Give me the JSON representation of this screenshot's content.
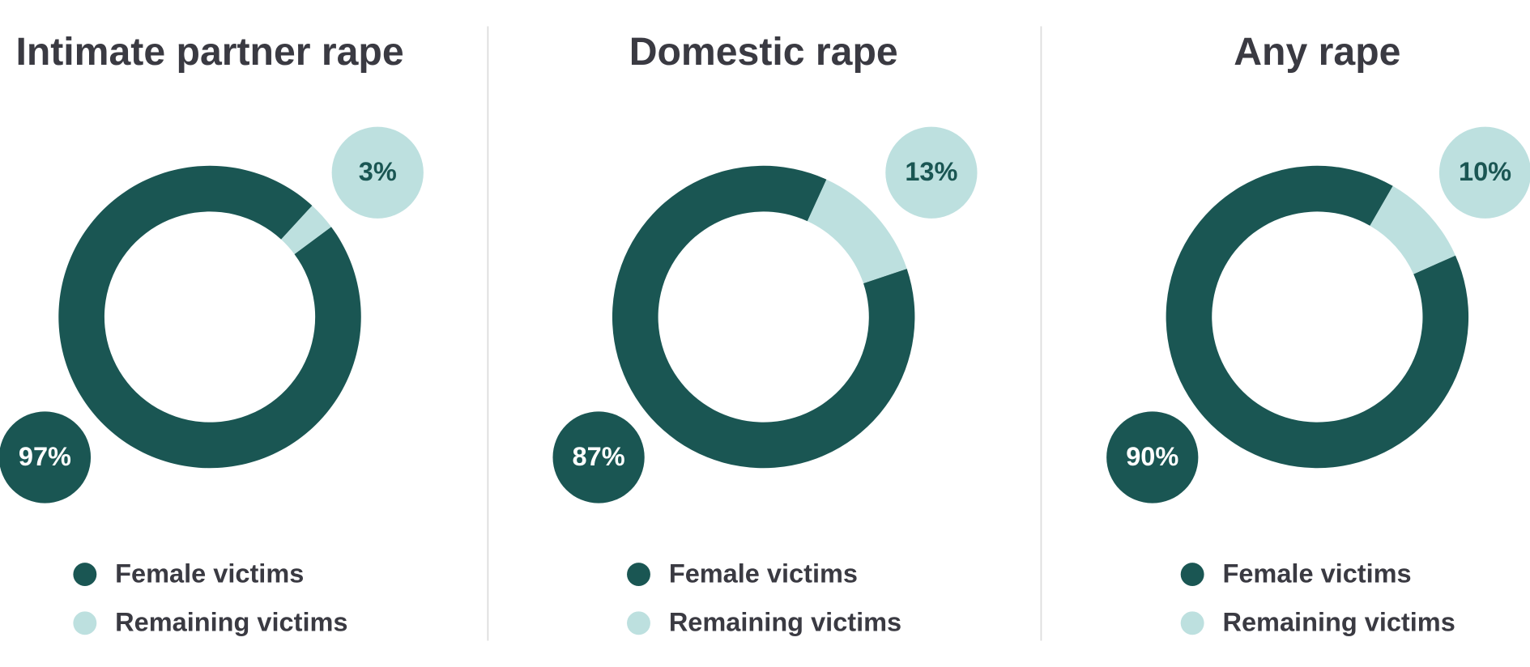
{
  "chart_data": [
    {
      "type": "pie",
      "title": "Intimate partner rape",
      "categories": [
        "Female victims",
        "Remaining victims"
      ],
      "values": [
        97,
        3
      ],
      "value_labels": [
        "97%",
        "3%"
      ],
      "colors": [
        "#1a5653",
        "#bde0df"
      ]
    },
    {
      "type": "pie",
      "title": "Domestic rape",
      "categories": [
        "Female victims",
        "Remaining victims"
      ],
      "values": [
        87,
        13
      ],
      "value_labels": [
        "87%",
        "13%"
      ],
      "colors": [
        "#1a5653",
        "#bde0df"
      ]
    },
    {
      "type": "pie",
      "title": "Any rape",
      "categories": [
        "Female victims",
        "Remaining victims"
      ],
      "values": [
        90,
        10
      ],
      "value_labels": [
        "90%",
        "10%"
      ],
      "colors": [
        "#1a5653",
        "#bde0df"
      ]
    }
  ]
}
